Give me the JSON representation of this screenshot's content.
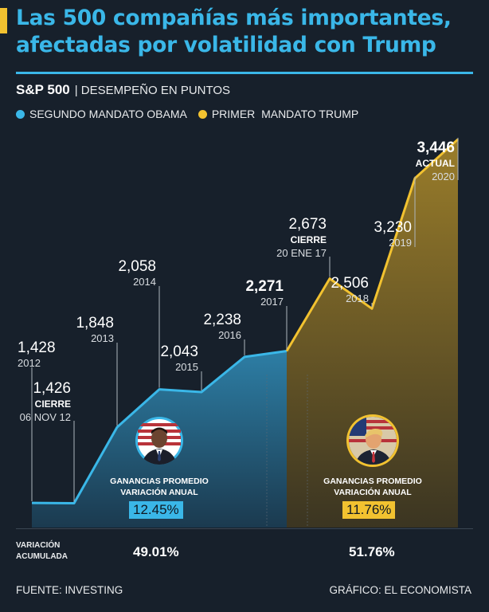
{
  "header": {
    "title": "Las 500 compañías más importantes, afectadas por volatilidad con Trump",
    "index_name": "S&P 500",
    "index_subtitle": "| DESEMPEÑO EN PUNTOS"
  },
  "legend": {
    "obama": "SEGUNDO MANDATO OBAMA",
    "trump": "PRIMER  MANDATO TRUMP"
  },
  "colors": {
    "obama": "#3ab7e8",
    "trump": "#f2c230",
    "background": "#17202b"
  },
  "chart_data": {
    "type": "area",
    "title": "S&P 500 | DESEMPEÑO EN PUNTOS",
    "series": [
      {
        "name": "SEGUNDO MANDATO OBAMA",
        "points": [
          {
            "value": 1428,
            "value_label": "1,428",
            "sub": [
              "2012"
            ]
          },
          {
            "value": 1426,
            "value_label": "1,426",
            "sub": [
              "CIERRE",
              "06 NOV 12"
            ]
          },
          {
            "value": 1848,
            "value_label": "1,848",
            "sub": [
              "2013"
            ]
          },
          {
            "value": 2058,
            "value_label": "2,058",
            "sub": [
              "2014"
            ]
          },
          {
            "value": 2043,
            "value_label": "2,043",
            "sub": [
              "2015"
            ]
          },
          {
            "value": 2238,
            "value_label": "2,238",
            "sub": [
              "2016"
            ]
          },
          {
            "value": 2271,
            "value_label": "2,271",
            "sub": [
              "2017"
            ]
          }
        ]
      },
      {
        "name": "PRIMER  MANDATO TRUMP",
        "points": [
          {
            "value": 2271,
            "value_label": "2,271",
            "sub": [
              "2017"
            ]
          },
          {
            "value": 2673,
            "value_label": "2,673",
            "sub": [
              "CIERRE",
              "20 ENE 17"
            ]
          },
          {
            "value": 2506,
            "value_label": "2,506",
            "sub": [
              "2018"
            ]
          },
          {
            "value": 3230,
            "value_label": "3,230",
            "sub": [
              "2019"
            ]
          },
          {
            "value": 3446,
            "value_label": "3,446",
            "sub": [
              "ACTUAL",
              "2020"
            ]
          }
        ]
      }
    ],
    "ylim": [
      1300,
      3600
    ]
  },
  "gains": {
    "obama": {
      "title": "GANANCIAS PROMEDIO VARIACIÓN ANUAL",
      "value": "12.45%"
    },
    "trump": {
      "title": "GANANCIAS PROMEDIO VARIACIÓN ANUAL",
      "value": "11.76%"
    }
  },
  "variation": {
    "label": "VARIACIÓN ACUMULADA",
    "obama": "49.01%",
    "trump": "51.76%"
  },
  "footer": {
    "source": "FUENTE: INVESTING",
    "credit": "GRÁFICO: EL ECONOMISTA"
  }
}
